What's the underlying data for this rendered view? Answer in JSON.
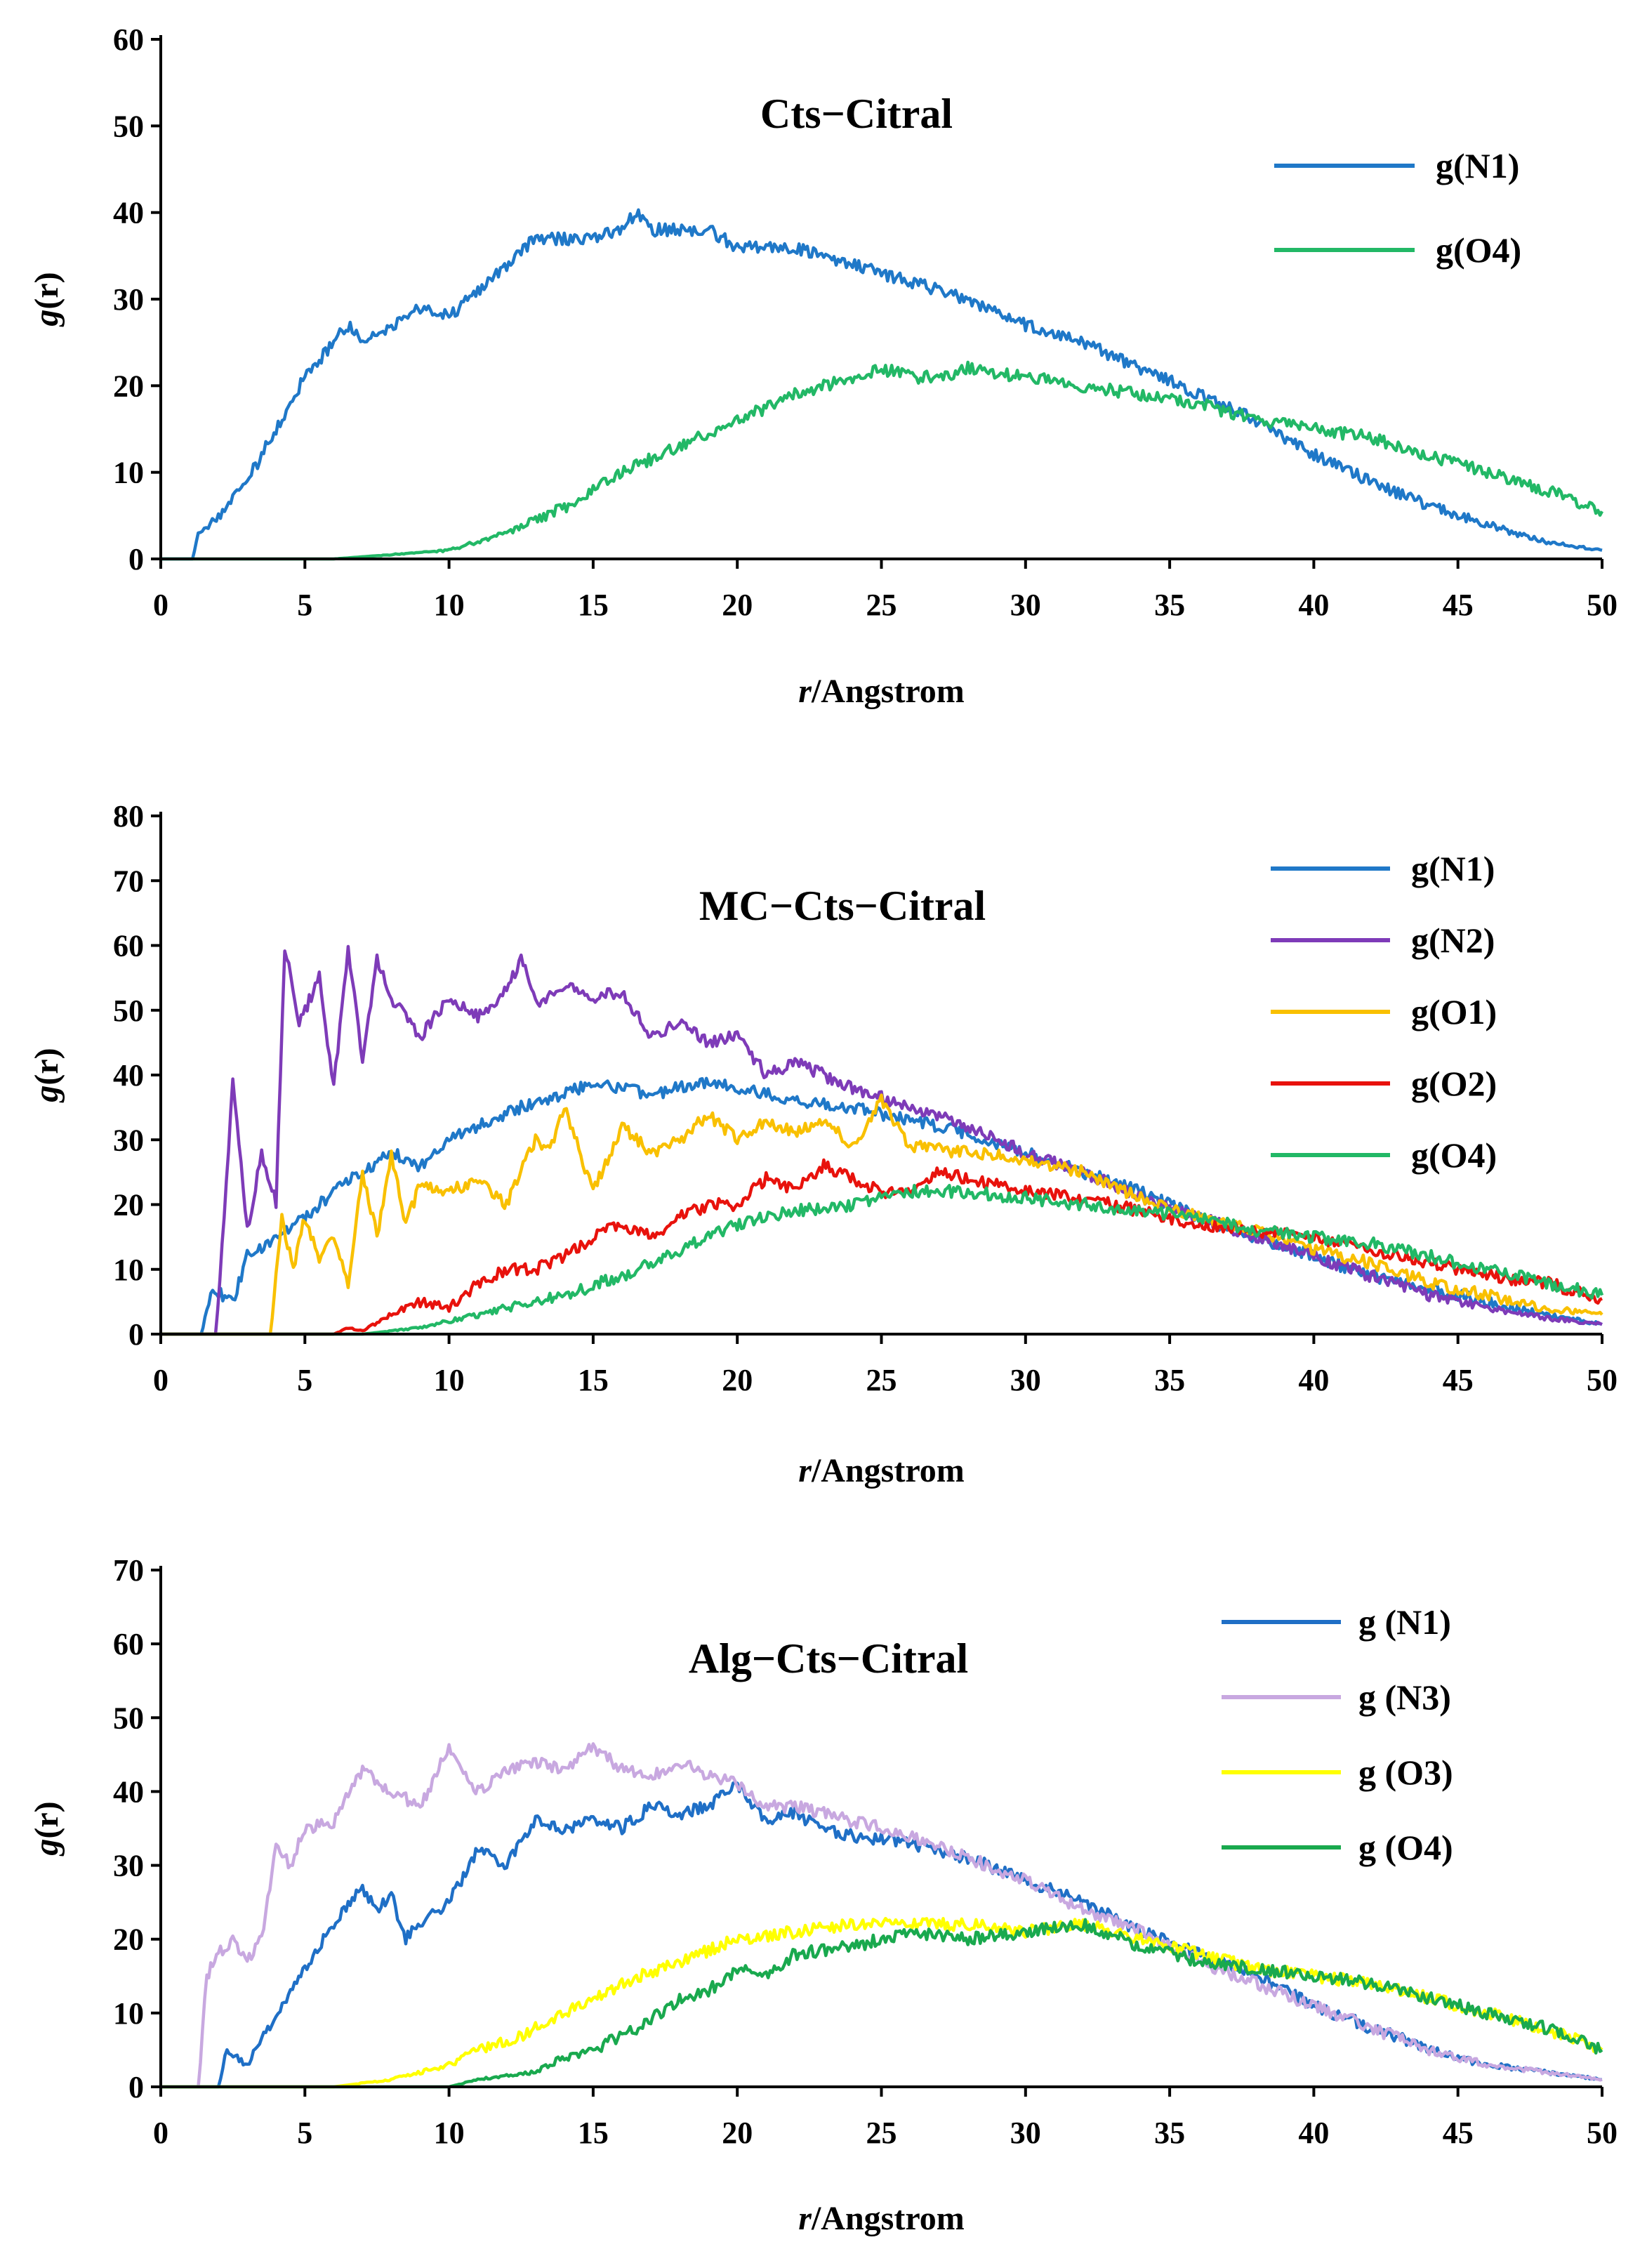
{
  "chart_data": [
    {
      "type": "line",
      "title": "Cts−Citral",
      "xlabel_italic": "r",
      "xlabel_rest": "/Angstrom",
      "ylabel_italic": "g",
      "ylabel_rest": "(r)",
      "xlim": [
        0,
        50
      ],
      "ylim": [
        0,
        60
      ],
      "xticks": [
        0,
        5,
        10,
        15,
        20,
        25,
        30,
        35,
        40,
        45,
        50
      ],
      "yticks": [
        0,
        10,
        20,
        30,
        40,
        50,
        60
      ],
      "legend_position": "top-right",
      "series": [
        {
          "name": "g(N1)",
          "color": "#1f78c8",
          "x": [
            0,
            1.1,
            1.3,
            2,
            3,
            4,
            5,
            6,
            6.5,
            7,
            8,
            9,
            10,
            11,
            12,
            13,
            14,
            15,
            16,
            16.5,
            17,
            18,
            19,
            20,
            22,
            24,
            26,
            28,
            30,
            32,
            34,
            36,
            38,
            40,
            42,
            44,
            46,
            48,
            50
          ],
          "y": [
            0,
            0,
            3,
            5,
            9,
            15,
            21,
            25,
            27,
            25,
            27,
            29,
            28,
            31,
            34,
            37,
            37,
            37,
            38,
            40,
            38,
            38,
            38,
            36,
            36,
            34,
            32,
            30,
            27,
            25,
            22,
            19,
            16,
            12,
            9,
            6,
            4,
            2,
            1
          ]
        },
        {
          "name": "g(O4)",
          "color": "#22b866",
          "x": [
            0,
            6,
            8,
            10,
            11,
            12,
            14,
            16,
            18,
            20,
            22,
            24,
            25,
            26,
            27,
            28,
            30,
            32,
            34,
            36,
            38,
            40,
            42,
            44,
            46,
            48,
            50
          ],
          "y": [
            0,
            0,
            0.5,
            1,
            2,
            3,
            6,
            10,
            13,
            16,
            19,
            21,
            22,
            21,
            21,
            22,
            21,
            20,
            19,
            18,
            16,
            15,
            14,
            12,
            10,
            8,
            5.5
          ]
        }
      ]
    },
    {
      "type": "line",
      "title": "MC−Cts−Citral",
      "xlabel_italic": "r",
      "xlabel_rest": "/Angstrom",
      "ylabel_italic": "g",
      "ylabel_rest": "(r)",
      "xlim": [
        0,
        50
      ],
      "ylim": [
        0,
        80
      ],
      "xticks": [
        0,
        5,
        10,
        15,
        20,
        25,
        30,
        35,
        40,
        45,
        50
      ],
      "yticks": [
        0,
        10,
        20,
        30,
        40,
        50,
        60,
        70,
        80
      ],
      "legend_position": "top-right",
      "series": [
        {
          "name": "g(N1)",
          "color": "#1f78c8",
          "x": [
            0,
            1.4,
            1.8,
            2.5,
            3,
            4,
            5,
            6,
            7,
            8,
            9,
            10,
            11,
            12,
            13,
            14,
            15,
            16,
            17,
            18,
            19,
            20,
            22,
            24,
            26,
            28,
            30,
            32,
            34,
            36,
            38,
            40,
            42,
            44,
            46,
            48,
            50
          ],
          "y": [
            0,
            0,
            7,
            5,
            12,
            15,
            18,
            22,
            25,
            28,
            26,
            30,
            32,
            34,
            36,
            37,
            39,
            38,
            37,
            38,
            39,
            38,
            36,
            35,
            33,
            31,
            28,
            25,
            22,
            18,
            15,
            12,
            9,
            7,
            5,
            3,
            1.5
          ]
        },
        {
          "name": "g(N2)",
          "color": "#7e3bb8",
          "x": [
            0,
            1.9,
            2.2,
            2.5,
            3,
            3.5,
            4,
            4.3,
            4.8,
            5.5,
            6,
            6.5,
            7,
            7.5,
            8,
            9,
            10,
            11,
            12,
            12.5,
            13,
            14,
            15,
            16,
            17,
            18,
            19,
            20,
            21,
            22,
            24,
            26,
            28,
            30,
            32,
            34,
            36,
            38,
            40,
            42,
            44,
            46,
            48,
            50
          ],
          "y": [
            0,
            0,
            18,
            40,
            16,
            28,
            20,
            60,
            48,
            55,
            38,
            60,
            42,
            58,
            52,
            46,
            52,
            49,
            53,
            58,
            51,
            54,
            52,
            53,
            46,
            48,
            45,
            46,
            40,
            42,
            38,
            35,
            32,
            28,
            25,
            21,
            18,
            15,
            12,
            9,
            6,
            4,
            2.5,
            1.5
          ]
        },
        {
          "name": "g(O1)",
          "color": "#f9c000",
          "x": [
            0,
            3.8,
            4.2,
            4.6,
            5,
            5.5,
            6,
            6.5,
            7,
            7.5,
            8,
            8.5,
            9,
            10,
            11,
            12,
            13,
            13.5,
            14,
            15,
            16,
            17,
            18,
            19,
            20,
            21,
            22,
            23,
            24,
            25,
            26,
            28,
            30,
            32,
            34,
            36,
            38,
            40,
            42,
            44,
            46,
            48,
            50
          ],
          "y": [
            0,
            0,
            18,
            10,
            18,
            12,
            15,
            8,
            25,
            15,
            28,
            17,
            23,
            22,
            24,
            20,
            30,
            28,
            35,
            22,
            32,
            28,
            30,
            34,
            30,
            33,
            31,
            33,
            29,
            36,
            29,
            28,
            27,
            25,
            21,
            18,
            16,
            13,
            11,
            8,
            6,
            4,
            3
          ]
        },
        {
          "name": "g(O2)",
          "color": "#e8120c",
          "x": [
            0,
            6,
            6.5,
            7,
            8,
            9,
            10,
            11,
            12,
            13,
            14,
            15,
            16,
            17,
            18,
            19,
            20,
            21,
            22,
            23,
            24,
            25,
            26,
            27,
            28,
            29,
            30,
            32,
            34,
            36,
            38,
            40,
            42,
            44,
            46,
            48,
            50
          ],
          "y": [
            0,
            0,
            1,
            0.5,
            3,
            5,
            4,
            8,
            10,
            10,
            12,
            15,
            17,
            15,
            18,
            20,
            20,
            24,
            22,
            26,
            24,
            22,
            22,
            25,
            24,
            23,
            22,
            21,
            19,
            17,
            16,
            15,
            13,
            11,
            9,
            8,
            5.5
          ]
        },
        {
          "name": "g(O4)",
          "color": "#22b866",
          "x": [
            0,
            7,
            9,
            10,
            11,
            12,
            14,
            16,
            18,
            20,
            22,
            24,
            26,
            28,
            30,
            32,
            34,
            36,
            38,
            40,
            42,
            44,
            46,
            48,
            50
          ],
          "y": [
            0,
            0,
            1,
            2,
            3,
            4,
            6,
            9,
            13,
            17,
            19,
            20,
            22,
            22,
            21,
            20,
            19,
            18,
            16,
            15,
            14,
            12,
            10,
            8,
            6
          ]
        }
      ]
    },
    {
      "type": "line",
      "title": "Alg−Cts−Citral",
      "xlabel_italic": "r",
      "xlabel_rest": "/Angstrom",
      "ylabel_italic": "g",
      "ylabel_rest": "(r)",
      "xlim": [
        0,
        50
      ],
      "ylim": [
        0,
        70
      ],
      "xticks": [
        0,
        5,
        10,
        15,
        20,
        25,
        30,
        35,
        40,
        45,
        50
      ],
      "yticks": [
        0,
        10,
        20,
        30,
        40,
        50,
        60,
        70
      ],
      "legend_position": "top-right",
      "series": [
        {
          "name": "g (N1)",
          "color": "#1f6fc6",
          "x": [
            0,
            2,
            2.3,
            3,
            4,
            5,
            6,
            7,
            7.5,
            8,
            8.5,
            9,
            10,
            11,
            12,
            13,
            14,
            15,
            16,
            17,
            18,
            19,
            20,
            21,
            22,
            23,
            24,
            26,
            28,
            30,
            32,
            34,
            36,
            38,
            40,
            42,
            44,
            46,
            48,
            50
          ],
          "y": [
            0,
            0,
            5,
            3,
            10,
            16,
            22,
            27,
            24,
            26,
            20,
            22,
            25,
            32,
            30,
            36,
            35,
            36,
            35,
            38,
            37,
            38,
            41,
            36,
            37,
            35,
            34,
            33,
            31,
            28,
            25,
            21,
            18,
            15,
            11,
            8,
            5,
            3,
            2,
            1
          ]
        },
        {
          "name": "g (N3)",
          "color": "#c8a8e0",
          "x": [
            0,
            1.3,
            1.6,
            2,
            2.5,
            3,
            3.5,
            4,
            4.5,
            5,
            6,
            7,
            8,
            9,
            10,
            11,
            12,
            13,
            14,
            15,
            16,
            17,
            18,
            19,
            20,
            21,
            22,
            23,
            24,
            26,
            28,
            30,
            32,
            34,
            36,
            38,
            40,
            42,
            44,
            46,
            48,
            50
          ],
          "y": [
            0,
            0,
            15,
            18,
            20,
            17,
            20,
            33,
            30,
            35,
            36,
            43,
            40,
            38,
            46,
            40,
            43,
            44,
            43,
            46,
            43,
            42,
            44,
            42,
            41,
            38,
            38,
            37,
            36,
            34,
            31,
            28,
            24,
            21,
            17,
            14,
            11,
            8,
            5,
            3,
            2,
            1
          ]
        },
        {
          "name": "g (O3)",
          "color": "#ffff00",
          "x": [
            0,
            6,
            8,
            9,
            10,
            11,
            12,
            14,
            16,
            18,
            20,
            22,
            24,
            26,
            28,
            30,
            32,
            34,
            36,
            38,
            40,
            42,
            44,
            46,
            48,
            50
          ],
          "y": [
            0,
            0,
            1,
            2,
            3,
            5,
            6,
            10,
            14,
            17,
            20,
            21,
            22,
            22,
            22,
            21,
            22,
            20,
            18,
            16,
            15,
            14,
            12,
            10,
            8,
            5
          ]
        },
        {
          "name": "g (O4)",
          "color": "#19a94e",
          "x": [
            0,
            10,
            11,
            12,
            13,
            14,
            15,
            16,
            17,
            18,
            19,
            20,
            21,
            22,
            24,
            26,
            28,
            30,
            32,
            34,
            36,
            38,
            40,
            42,
            44,
            46,
            48,
            50
          ],
          "y": [
            0,
            0,
            1,
            1.5,
            2,
            4,
            5,
            7,
            9,
            12,
            13,
            16,
            15,
            18,
            19,
            21,
            20,
            21,
            22,
            19,
            17,
            16,
            15,
            14,
            12,
            10,
            8,
            5
          ]
        }
      ]
    }
  ]
}
